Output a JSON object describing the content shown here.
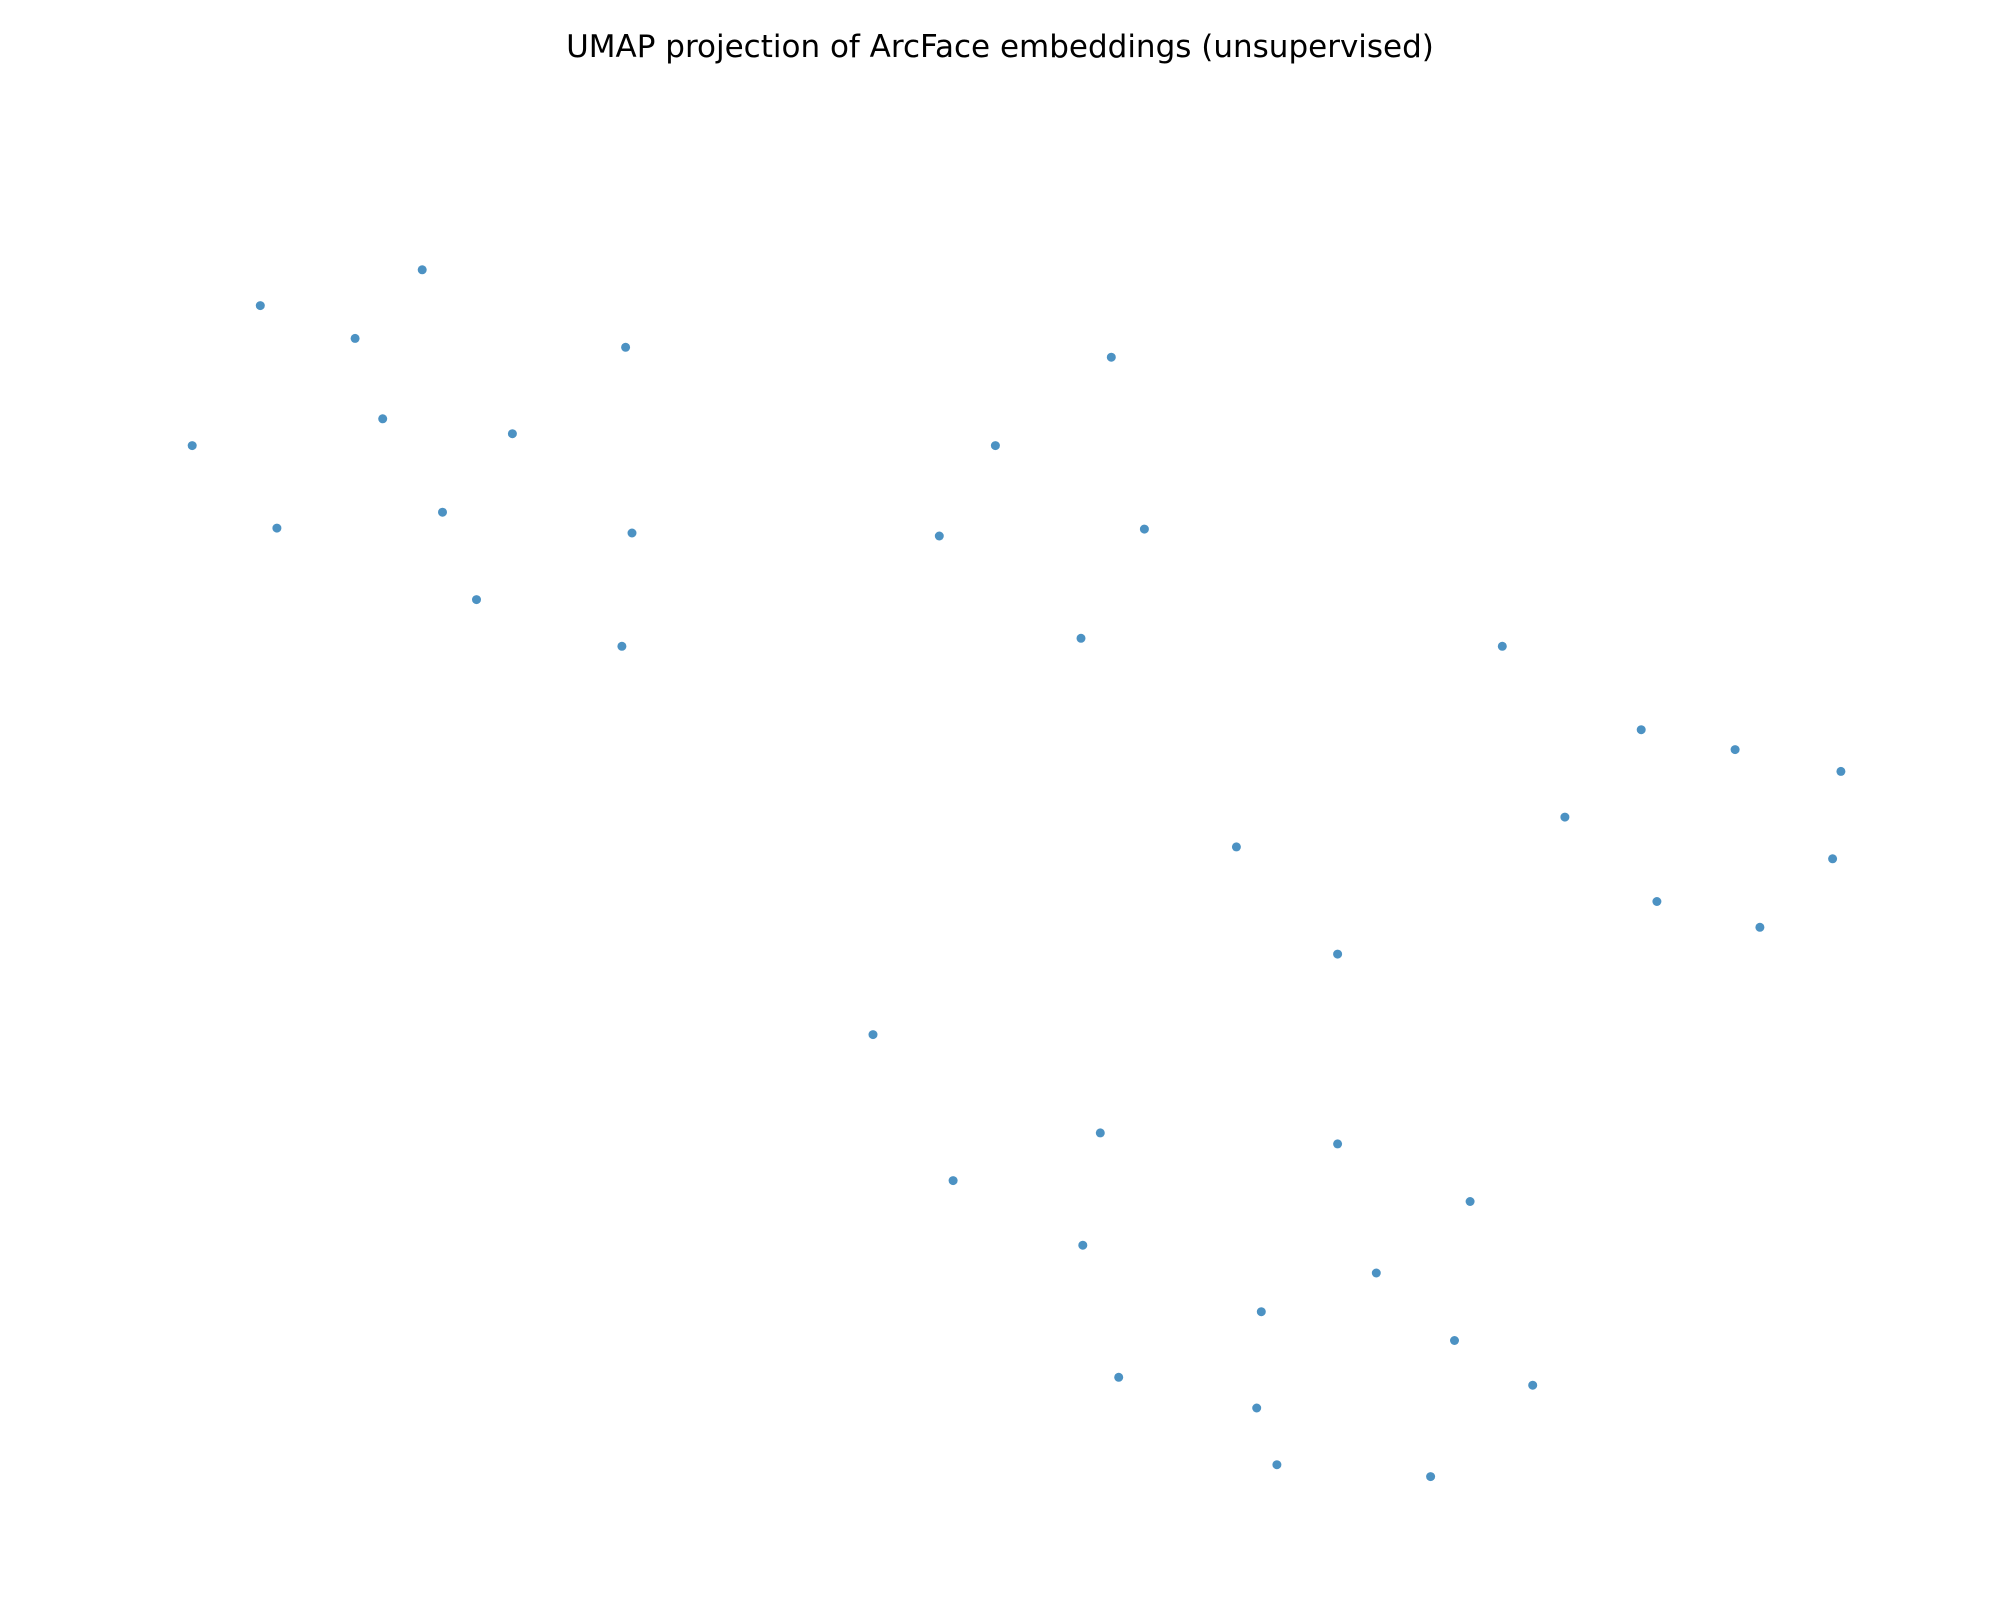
{
  "chart_data": {
    "type": "scatter",
    "title": "UMAP projection of ArcFace embeddings (unsupervised)",
    "xlabel": "",
    "ylabel": "",
    "axes_visible": false,
    "grid": false,
    "legend": "none",
    "xlim": [
      0,
      20
    ],
    "ylim": [
      0,
      14.7
    ],
    "series": [
      {
        "color": "#1f77b4",
        "points": [
          [
            1.22,
            11.22
          ],
          [
            1.96,
            12.63
          ],
          [
            2.14,
            10.39
          ],
          [
            2.99,
            12.3
          ],
          [
            3.29,
            11.49
          ],
          [
            3.72,
            12.99
          ],
          [
            3.94,
            10.55
          ],
          [
            4.31,
            9.67
          ],
          [
            4.7,
            11.34
          ],
          [
            5.89,
            9.2
          ],
          [
            5.93,
            12.21
          ],
          [
            6.0,
            10.34
          ],
          [
            9.34,
            10.31
          ],
          [
            9.95,
            11.22
          ],
          [
            11.21,
            12.11
          ],
          [
            10.88,
            9.28
          ],
          [
            11.57,
            10.38
          ],
          [
            15.46,
            9.2
          ],
          [
            16.97,
            8.36
          ],
          [
            17.99,
            8.16
          ],
          [
            19.14,
            7.94
          ],
          [
            16.14,
            7.48
          ],
          [
            12.57,
            7.18
          ],
          [
            19.05,
            7.06
          ],
          [
            17.14,
            6.63
          ],
          [
            18.26,
            6.37
          ],
          [
            13.67,
            6.1
          ],
          [
            8.62,
            5.29
          ],
          [
            11.09,
            4.3
          ],
          [
            13.67,
            4.19
          ],
          [
            9.49,
            3.82
          ],
          [
            15.11,
            3.61
          ],
          [
            10.9,
            3.17
          ],
          [
            14.09,
            2.89
          ],
          [
            12.84,
            2.5
          ],
          [
            14.94,
            2.21
          ],
          [
            11.29,
            1.84
          ],
          [
            12.79,
            1.53
          ],
          [
            15.79,
            1.76
          ],
          [
            13.01,
            0.96
          ],
          [
            14.68,
            0.84
          ]
        ]
      }
    ]
  }
}
